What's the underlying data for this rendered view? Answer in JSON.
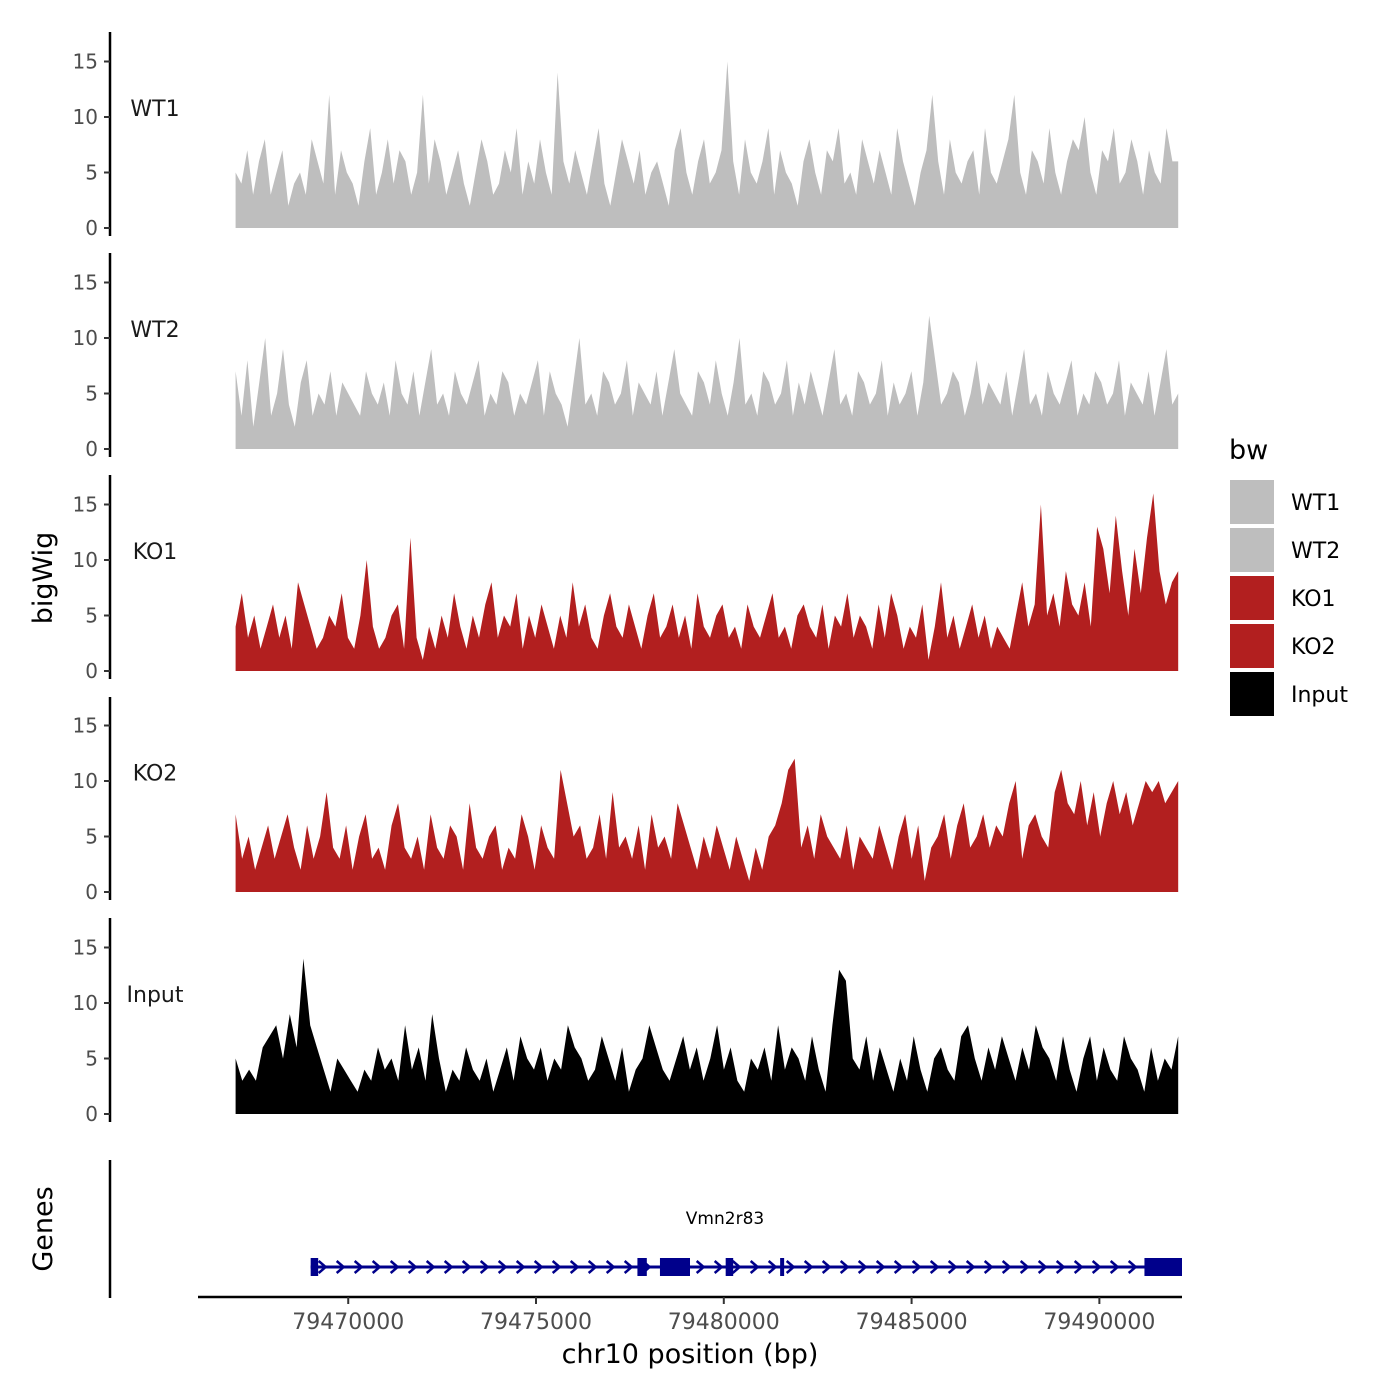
{
  "chart_data": {
    "type": "area",
    "chromosome": "chr10",
    "xlabel": "chr10 position (bp)",
    "ylabel": "bigWig",
    "gene_panel_label": "Genes",
    "xlim": [
      79466000,
      79492200
    ],
    "ylim": [
      0,
      17.5
    ],
    "x_ticks": [
      79470000,
      79475000,
      79480000,
      79485000,
      79490000
    ],
    "y_ticks": [
      0,
      5,
      10,
      15
    ],
    "legend": {
      "title": "bw",
      "position": "right",
      "entries": [
        {
          "name": "WT1",
          "color": "#bebebe"
        },
        {
          "name": "WT2",
          "color": "#bebebe"
        },
        {
          "name": "KO1",
          "color": "#b21f1f"
        },
        {
          "name": "KO2",
          "color": "#b21f1f"
        },
        {
          "name": "Input",
          "color": "#000000"
        }
      ]
    },
    "series": [
      {
        "name": "WT1",
        "color": "#bebebe",
        "x_start": 79467000,
        "x_end": 79492100,
        "values": [
          5,
          4,
          7,
          3,
          6,
          8,
          3,
          5,
          7,
          2,
          4,
          5,
          3,
          8,
          6,
          4,
          12,
          3,
          7,
          5,
          4,
          2,
          6,
          9,
          3,
          5,
          8,
          4,
          7,
          6,
          3,
          5,
          12,
          4,
          8,
          6,
          3,
          5,
          7,
          4,
          2,
          5,
          8,
          6,
          3,
          4,
          7,
          5,
          9,
          3,
          6,
          4,
          8,
          5,
          3,
          14,
          6,
          4,
          7,
          5,
          3,
          6,
          9,
          4,
          2,
          5,
          8,
          6,
          4,
          7,
          3,
          5,
          6,
          4,
          2,
          7,
          9,
          5,
          3,
          6,
          8,
          4,
          5,
          7,
          15,
          6,
          3,
          8,
          5,
          4,
          6,
          9,
          3,
          7,
          5,
          4,
          2,
          6,
          8,
          5,
          3,
          7,
          6,
          9,
          4,
          5,
          3,
          8,
          6,
          4,
          7,
          5,
          3,
          9,
          6,
          4,
          2,
          5,
          7,
          12,
          6,
          3,
          8,
          5,
          4,
          6,
          7,
          3,
          9,
          5,
          4,
          6,
          8,
          12,
          5,
          3,
          7,
          6,
          4,
          9,
          5,
          3,
          6,
          8,
          7,
          10,
          5,
          3,
          7,
          6,
          9,
          4,
          5,
          8,
          6,
          3,
          7,
          5,
          4,
          9,
          6,
          6
        ]
      },
      {
        "name": "WT2",
        "color": "#bebebe",
        "x_start": 79467000,
        "x_end": 79492100,
        "values": [
          7,
          3,
          8,
          2,
          6,
          10,
          3,
          5,
          9,
          4,
          2,
          6,
          8,
          3,
          5,
          4,
          7,
          3,
          6,
          5,
          4,
          3,
          7,
          5,
          4,
          6,
          3,
          8,
          5,
          4,
          7,
          3,
          6,
          9,
          4,
          5,
          3,
          7,
          5,
          4,
          6,
          8,
          3,
          5,
          4,
          7,
          6,
          3,
          5,
          4,
          6,
          8,
          3,
          7,
          5,
          4,
          2,
          6,
          10,
          4,
          5,
          3,
          7,
          6,
          4,
          5,
          8,
          3,
          6,
          5,
          4,
          7,
          3,
          6,
          9,
          5,
          4,
          3,
          7,
          6,
          4,
          8,
          5,
          3,
          6,
          10,
          4,
          5,
          3,
          7,
          6,
          4,
          5,
          8,
          3,
          6,
          4,
          7,
          5,
          3,
          6,
          9,
          4,
          5,
          3,
          7,
          6,
          4,
          5,
          8,
          3,
          6,
          4,
          5,
          7,
          3,
          6,
          12,
          8,
          4,
          5,
          7,
          6,
          3,
          5,
          8,
          4,
          6,
          5,
          4,
          7,
          3,
          6,
          9,
          4,
          5,
          3,
          7,
          5,
          4,
          6,
          8,
          3,
          5,
          4,
          7,
          6,
          4,
          5,
          8,
          3,
          6,
          5,
          4,
          7,
          3,
          6,
          9,
          4,
          5
        ]
      },
      {
        "name": "KO1",
        "color": "#b21f1f",
        "x_start": 79467000,
        "x_end": 79492100,
        "values": [
          4,
          7,
          3,
          5,
          2,
          4,
          6,
          3,
          5,
          2,
          8,
          6,
          4,
          2,
          3,
          5,
          4,
          7,
          3,
          2,
          5,
          10,
          4,
          2,
          3,
          5,
          6,
          2,
          12,
          3,
          1,
          4,
          2,
          5,
          3,
          7,
          4,
          2,
          5,
          3,
          6,
          8,
          3,
          5,
          4,
          7,
          2,
          5,
          3,
          6,
          4,
          2,
          5,
          3,
          8,
          4,
          6,
          3,
          2,
          5,
          7,
          4,
          3,
          6,
          4,
          2,
          5,
          7,
          3,
          4,
          6,
          3,
          5,
          2,
          7,
          4,
          3,
          5,
          6,
          3,
          4,
          2,
          6,
          4,
          3,
          5,
          7,
          3,
          4,
          2,
          5,
          6,
          4,
          3,
          6,
          2,
          5,
          4,
          7,
          3,
          5,
          4,
          2,
          6,
          3,
          7,
          5,
          2,
          4,
          3,
          6,
          1,
          4,
          8,
          3,
          5,
          2,
          4,
          6,
          3,
          5,
          2,
          4,
          3,
          2,
          5,
          8,
          4,
          6,
          15,
          5,
          7,
          4,
          9,
          6,
          5,
          8,
          4,
          13,
          11,
          7,
          14,
          9,
          5,
          11,
          7,
          12,
          16,
          9,
          6,
          8,
          9
        ]
      },
      {
        "name": "KO2",
        "color": "#b21f1f",
        "x_start": 79467000,
        "x_end": 79492100,
        "values": [
          7,
          3,
          5,
          2,
          4,
          6,
          3,
          5,
          7,
          4,
          2,
          6,
          3,
          5,
          9,
          4,
          3,
          6,
          2,
          5,
          7,
          3,
          4,
          2,
          6,
          8,
          4,
          3,
          5,
          2,
          7,
          4,
          3,
          6,
          5,
          2,
          8,
          4,
          3,
          5,
          6,
          2,
          4,
          3,
          7,
          5,
          2,
          6,
          4,
          3,
          11,
          8,
          5,
          6,
          3,
          4,
          7,
          3,
          9,
          4,
          5,
          3,
          6,
          2,
          7,
          4,
          5,
          3,
          8,
          6,
          4,
          2,
          5,
          3,
          6,
          4,
          2,
          5,
          3,
          1,
          4,
          2,
          5,
          6,
          8,
          11,
          12,
          4,
          6,
          3,
          7,
          5,
          4,
          3,
          6,
          2,
          5,
          4,
          3,
          6,
          4,
          2,
          5,
          7,
          3,
          6,
          1,
          4,
          5,
          7,
          3,
          6,
          8,
          4,
          5,
          7,
          4,
          6,
          5,
          8,
          10,
          3,
          6,
          7,
          5,
          4,
          9,
          11,
          8,
          7,
          10,
          6,
          9,
          5,
          8,
          10,
          7,
          9,
          6,
          8,
          10,
          9,
          10,
          8,
          9,
          10
        ]
      },
      {
        "name": "Input",
        "color": "#000000",
        "x_start": 79467000,
        "x_end": 79492100,
        "values": [
          5,
          3,
          4,
          3,
          6,
          7,
          8,
          5,
          9,
          6,
          14,
          8,
          6,
          4,
          2,
          5,
          4,
          3,
          2,
          4,
          3,
          6,
          4,
          5,
          3,
          8,
          4,
          6,
          3,
          9,
          5,
          2,
          4,
          3,
          6,
          4,
          3,
          5,
          2,
          4,
          6,
          3,
          7,
          5,
          4,
          6,
          3,
          5,
          4,
          8,
          6,
          5,
          3,
          4,
          7,
          5,
          3,
          6,
          2,
          4,
          5,
          8,
          6,
          4,
          3,
          5,
          7,
          4,
          6,
          3,
          5,
          8,
          4,
          6,
          3,
          2,
          5,
          4,
          6,
          3,
          8,
          4,
          6,
          5,
          3,
          7,
          4,
          2,
          8,
          13,
          12,
          5,
          4,
          7,
          3,
          6,
          4,
          2,
          5,
          3,
          7,
          4,
          2,
          5,
          6,
          4,
          3,
          7,
          8,
          5,
          3,
          6,
          4,
          7,
          5,
          3,
          6,
          4,
          8,
          6,
          5,
          3,
          7,
          4,
          2,
          5,
          7,
          3,
          6,
          4,
          3,
          7,
          5,
          4,
          2,
          6,
          3,
          5,
          4,
          7
        ]
      }
    ],
    "gene": {
      "name": "Vmn2r83",
      "color": "#00008b",
      "strand": "+",
      "start": 79469000,
      "end": 79492200,
      "exons": [
        [
          79469000,
          79469200
        ],
        [
          79477700,
          79477950
        ],
        [
          79478300,
          79479100
        ],
        [
          79480050,
          79480250
        ],
        [
          79481500,
          79481600
        ],
        [
          79491200,
          79492200
        ]
      ]
    }
  }
}
